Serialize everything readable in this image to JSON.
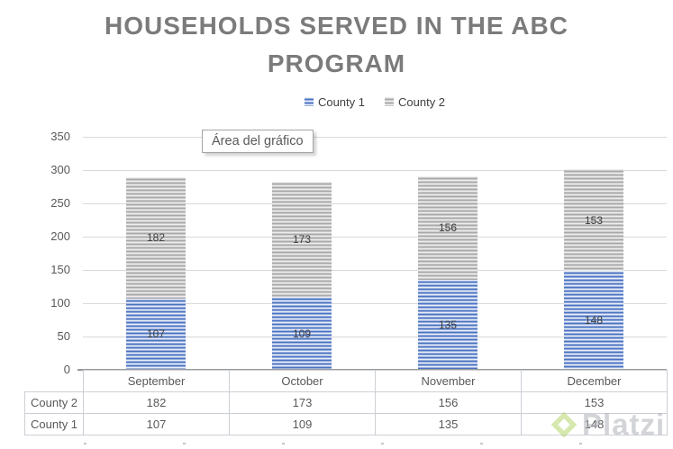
{
  "chart_data": {
    "type": "bar",
    "stacked": true,
    "title": "HOUSEHOLDS SERVED IN THE ABC PROGRAM",
    "categories": [
      "September",
      "October",
      "November",
      "December"
    ],
    "series": [
      {
        "name": "County 1",
        "values": [
          107,
          109,
          135,
          148
        ],
        "color": "#4a72c2",
        "stripe_color": "#e9eef8"
      },
      {
        "name": "County 2",
        "values": [
          182,
          173,
          156,
          153
        ],
        "color": "#a8a8a8",
        "stripe_color": "#ededed"
      }
    ],
    "ylim": [
      0,
      350
    ],
    "yticks": [
      0,
      50,
      100,
      150,
      200,
      250,
      300,
      350
    ],
    "grid": true,
    "legend_position": "top",
    "data_table": true
  },
  "tooltip": {
    "text": "Área del gráfico"
  },
  "watermark": {
    "text": "Platzi",
    "logo_color": "#a3cc4a"
  },
  "colors": {
    "title_text": "#7b7b7b",
    "axis_text": "#595959",
    "gridline": "#d9d9d9",
    "county1_blue": "#4a72c2",
    "county2_gray": "#a8a8a8"
  }
}
